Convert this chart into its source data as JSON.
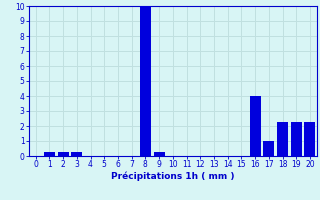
{
  "categories": [
    0,
    1,
    2,
    3,
    4,
    5,
    6,
    7,
    8,
    9,
    10,
    11,
    12,
    13,
    14,
    15,
    16,
    17,
    18,
    19,
    20
  ],
  "values": [
    0,
    0.3,
    0.3,
    0.3,
    0,
    0,
    0,
    0,
    10,
    0.3,
    0,
    0,
    0,
    0,
    0,
    0,
    4.0,
    1.0,
    2.3,
    2.3,
    2.3
  ],
  "bar_color": "#0000dd",
  "bg_color": "#d8f5f5",
  "grid_color": "#c0e0e0",
  "xlabel": "Précipitations 1h ( mm )",
  "ylim": [
    0,
    10
  ],
  "yticks": [
    0,
    1,
    2,
    3,
    4,
    5,
    6,
    7,
    8,
    9,
    10
  ],
  "xticks": [
    0,
    1,
    2,
    3,
    4,
    5,
    6,
    7,
    8,
    9,
    10,
    11,
    12,
    13,
    14,
    15,
    16,
    17,
    18,
    19,
    20
  ],
  "tick_color": "#0000cc",
  "label_fontsize": 6.5,
  "tick_fontsize": 5.5
}
